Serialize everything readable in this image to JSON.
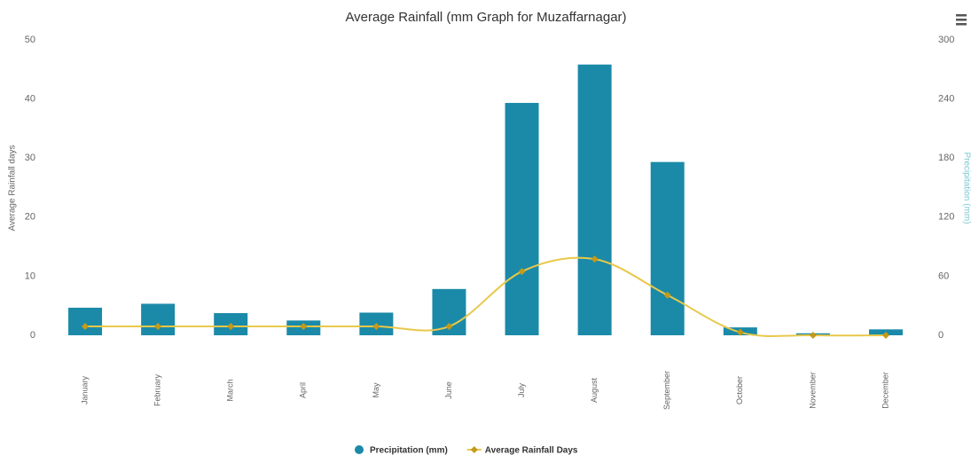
{
  "chart_data": {
    "type": "bar-line",
    "title": "Average Rainfall (mm Graph for Muzaffarnagar)",
    "y_label": "Average Rainfall days",
    "y2_label": "Precipitation (mm)",
    "categories": [
      "January",
      "February",
      "March",
      "April",
      "May",
      "June",
      "July",
      "August",
      "September",
      "October",
      "November",
      "December"
    ],
    "ylim": [
      0,
      50
    ],
    "yticks": [
      0,
      10,
      20,
      30,
      40,
      50
    ],
    "y2lim": [
      0,
      300
    ],
    "y2ticks": [
      0,
      60,
      120,
      180,
      240,
      300
    ],
    "series": [
      {
        "name": "Precipitation (mm)",
        "type": "bar",
        "axis": "y2",
        "color": "#1b8aa8",
        "values": [
          28,
          32,
          22.5,
          15,
          23,
          47,
          236,
          275,
          176,
          8,
          2,
          6
        ]
      },
      {
        "name": "Average Rainfall Days",
        "type": "line",
        "axis": "y",
        "color": "#e8c84a",
        "marker_color": "#c49a1a",
        "values": [
          1.5,
          1.5,
          1.5,
          1.5,
          1.5,
          1.5,
          10.8,
          12.9,
          6.8,
          0.5,
          0,
          0
        ]
      }
    ]
  }
}
